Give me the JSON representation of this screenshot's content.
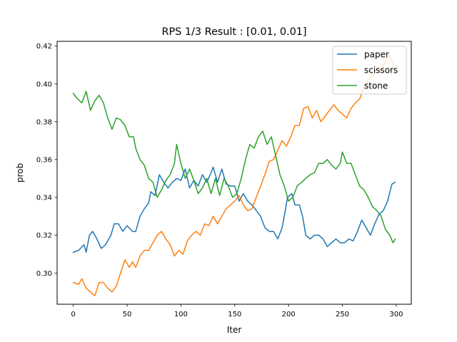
{
  "chart_data": {
    "type": "line",
    "title": "RPS 1/3 Result : [0.01, 0.01]",
    "xlabel": "Iter",
    "ylabel": "prob",
    "xlim": [
      -15,
      314
    ],
    "ylim": [
      0.2835,
      0.4225
    ],
    "x_ticks": [
      0,
      50,
      100,
      150,
      200,
      250,
      300
    ],
    "x_tick_labels": [
      "0",
      "50",
      "100",
      "150",
      "200",
      "250",
      "300"
    ],
    "y_ticks": [
      0.3,
      0.32,
      0.34,
      0.36,
      0.38,
      0.4,
      0.42
    ],
    "y_tick_labels": [
      "0.30",
      "0.32",
      "0.34",
      "0.36",
      "0.38",
      "0.40",
      "0.42"
    ],
    "grid": false,
    "legend_position": "top-right",
    "series": [
      {
        "name": "paper",
        "color": "#1f77b4",
        "points": [
          [
            0,
            0.311
          ],
          [
            5,
            0.312
          ],
          [
            10,
            0.315
          ],
          [
            12,
            0.311
          ],
          [
            15,
            0.32
          ],
          [
            18,
            0.322
          ],
          [
            22,
            0.318
          ],
          [
            26,
            0.313
          ],
          [
            30,
            0.315
          ],
          [
            35,
            0.32
          ],
          [
            38,
            0.326
          ],
          [
            42,
            0.326
          ],
          [
            46,
            0.322
          ],
          [
            50,
            0.325
          ],
          [
            55,
            0.322
          ],
          [
            58,
            0.322
          ],
          [
            62,
            0.33
          ],
          [
            66,
            0.334
          ],
          [
            70,
            0.337
          ],
          [
            72,
            0.343
          ],
          [
            76,
            0.341
          ],
          [
            80,
            0.352
          ],
          [
            84,
            0.348
          ],
          [
            88,
            0.345
          ],
          [
            92,
            0.348
          ],
          [
            96,
            0.35
          ],
          [
            100,
            0.349
          ],
          [
            104,
            0.355
          ],
          [
            108,
            0.345
          ],
          [
            112,
            0.349
          ],
          [
            116,
            0.346
          ],
          [
            120,
            0.352
          ],
          [
            124,
            0.348
          ],
          [
            128,
            0.353
          ],
          [
            130,
            0.356
          ],
          [
            134,
            0.348
          ],
          [
            138,
            0.355
          ],
          [
            142,
            0.347
          ],
          [
            146,
            0.346
          ],
          [
            150,
            0.346
          ],
          [
            154,
            0.338
          ],
          [
            158,
            0.342
          ],
          [
            162,
            0.338
          ],
          [
            166,
            0.336
          ],
          [
            170,
            0.333
          ],
          [
            174,
            0.33
          ],
          [
            178,
            0.324
          ],
          [
            182,
            0.322
          ],
          [
            186,
            0.322
          ],
          [
            190,
            0.318
          ],
          [
            194,
            0.324
          ],
          [
            196,
            0.33
          ],
          [
            199,
            0.34
          ],
          [
            203,
            0.342
          ],
          [
            206,
            0.336
          ],
          [
            210,
            0.336
          ],
          [
            213,
            0.33
          ],
          [
            216,
            0.32
          ],
          [
            220,
            0.318
          ],
          [
            224,
            0.32
          ],
          [
            228,
            0.32
          ],
          [
            232,
            0.318
          ],
          [
            236,
            0.314
          ],
          [
            240,
            0.316
          ],
          [
            244,
            0.318
          ],
          [
            248,
            0.316
          ],
          [
            252,
            0.316
          ],
          [
            256,
            0.318
          ],
          [
            260,
            0.317
          ],
          [
            264,
            0.322
          ],
          [
            268,
            0.328
          ],
          [
            272,
            0.324
          ],
          [
            276,
            0.32
          ],
          [
            280,
            0.326
          ],
          [
            284,
            0.331
          ],
          [
            288,
            0.333
          ],
          [
            292,
            0.338
          ],
          [
            296,
            0.347
          ],
          [
            299,
            0.348
          ]
        ]
      },
      {
        "name": "scissors",
        "color": "#ff7f0e",
        "points": [
          [
            0,
            0.295
          ],
          [
            5,
            0.294
          ],
          [
            8,
            0.297
          ],
          [
            12,
            0.292
          ],
          [
            16,
            0.29
          ],
          [
            20,
            0.288
          ],
          [
            24,
            0.295
          ],
          [
            28,
            0.295
          ],
          [
            32,
            0.292
          ],
          [
            36,
            0.29
          ],
          [
            40,
            0.293
          ],
          [
            44,
            0.3
          ],
          [
            48,
            0.307
          ],
          [
            52,
            0.303
          ],
          [
            55,
            0.306
          ],
          [
            58,
            0.303
          ],
          [
            62,
            0.309
          ],
          [
            66,
            0.312
          ],
          [
            70,
            0.312
          ],
          [
            74,
            0.316
          ],
          [
            78,
            0.32
          ],
          [
            82,
            0.322
          ],
          [
            86,
            0.318
          ],
          [
            90,
            0.315
          ],
          [
            94,
            0.309
          ],
          [
            98,
            0.312
          ],
          [
            102,
            0.31
          ],
          [
            106,
            0.317
          ],
          [
            110,
            0.32
          ],
          [
            114,
            0.322
          ],
          [
            118,
            0.32
          ],
          [
            122,
            0.326
          ],
          [
            126,
            0.325
          ],
          [
            130,
            0.33
          ],
          [
            134,
            0.326
          ],
          [
            138,
            0.33
          ],
          [
            142,
            0.334
          ],
          [
            146,
            0.336
          ],
          [
            150,
            0.338
          ],
          [
            154,
            0.341
          ],
          [
            158,
            0.336
          ],
          [
            162,
            0.333
          ],
          [
            166,
            0.334
          ],
          [
            170,
            0.34
          ],
          [
            174,
            0.346
          ],
          [
            178,
            0.352
          ],
          [
            182,
            0.359
          ],
          [
            186,
            0.36
          ],
          [
            190,
            0.365
          ],
          [
            194,
            0.37
          ],
          [
            198,
            0.367
          ],
          [
            202,
            0.372
          ],
          [
            206,
            0.378
          ],
          [
            210,
            0.378
          ],
          [
            214,
            0.387
          ],
          [
            218,
            0.388
          ],
          [
            222,
            0.382
          ],
          [
            226,
            0.386
          ],
          [
            230,
            0.38
          ],
          [
            234,
            0.383
          ],
          [
            238,
            0.386
          ],
          [
            242,
            0.389
          ],
          [
            246,
            0.386
          ],
          [
            250,
            0.384
          ],
          [
            254,
            0.382
          ],
          [
            258,
            0.387
          ],
          [
            262,
            0.39
          ],
          [
            266,
            0.392
          ],
          [
            270,
            0.398
          ],
          [
            274,
            0.402
          ],
          [
            278,
            0.404
          ],
          [
            282,
            0.408
          ],
          [
            286,
            0.407
          ],
          [
            290,
            0.412
          ],
          [
            294,
            0.415
          ],
          [
            297,
            0.41
          ],
          [
            299,
            0.405
          ]
        ]
      },
      {
        "name": "stone",
        "color": "#2ca02c",
        "points": [
          [
            0,
            0.395
          ],
          [
            4,
            0.392
          ],
          [
            8,
            0.39
          ],
          [
            12,
            0.396
          ],
          [
            16,
            0.386
          ],
          [
            20,
            0.391
          ],
          [
            24,
            0.394
          ],
          [
            28,
            0.39
          ],
          [
            32,
            0.382
          ],
          [
            36,
            0.376
          ],
          [
            40,
            0.382
          ],
          [
            44,
            0.381
          ],
          [
            48,
            0.378
          ],
          [
            52,
            0.372
          ],
          [
            56,
            0.372
          ],
          [
            58,
            0.366
          ],
          [
            62,
            0.36
          ],
          [
            66,
            0.357
          ],
          [
            70,
            0.35
          ],
          [
            74,
            0.348
          ],
          [
            78,
            0.34
          ],
          [
            82,
            0.344
          ],
          [
            86,
            0.349
          ],
          [
            90,
            0.352
          ],
          [
            94,
            0.358
          ],
          [
            96,
            0.368
          ],
          [
            100,
            0.358
          ],
          [
            104,
            0.35
          ],
          [
            108,
            0.355
          ],
          [
            112,
            0.349
          ],
          [
            116,
            0.342
          ],
          [
            120,
            0.345
          ],
          [
            124,
            0.35
          ],
          [
            128,
            0.342
          ],
          [
            132,
            0.35
          ],
          [
            136,
            0.341
          ],
          [
            140,
            0.35
          ],
          [
            144,
            0.346
          ],
          [
            148,
            0.34
          ],
          [
            152,
            0.342
          ],
          [
            156,
            0.35
          ],
          [
            160,
            0.36
          ],
          [
            164,
            0.368
          ],
          [
            168,
            0.366
          ],
          [
            172,
            0.372
          ],
          [
            176,
            0.375
          ],
          [
            180,
            0.368
          ],
          [
            184,
            0.372
          ],
          [
            188,
            0.362
          ],
          [
            192,
            0.352
          ],
          [
            196,
            0.346
          ],
          [
            200,
            0.338
          ],
          [
            204,
            0.34
          ],
          [
            208,
            0.346
          ],
          [
            212,
            0.348
          ],
          [
            216,
            0.35
          ],
          [
            220,
            0.352
          ],
          [
            224,
            0.353
          ],
          [
            228,
            0.358
          ],
          [
            232,
            0.358
          ],
          [
            236,
            0.36
          ],
          [
            240,
            0.357
          ],
          [
            244,
            0.355
          ],
          [
            248,
            0.358
          ],
          [
            250,
            0.364
          ],
          [
            254,
            0.358
          ],
          [
            258,
            0.358
          ],
          [
            262,
            0.352
          ],
          [
            266,
            0.346
          ],
          [
            270,
            0.344
          ],
          [
            274,
            0.34
          ],
          [
            278,
            0.335
          ],
          [
            282,
            0.333
          ],
          [
            286,
            0.33
          ],
          [
            290,
            0.323
          ],
          [
            294,
            0.32
          ],
          [
            297,
            0.316
          ],
          [
            299,
            0.318
          ]
        ]
      }
    ]
  }
}
